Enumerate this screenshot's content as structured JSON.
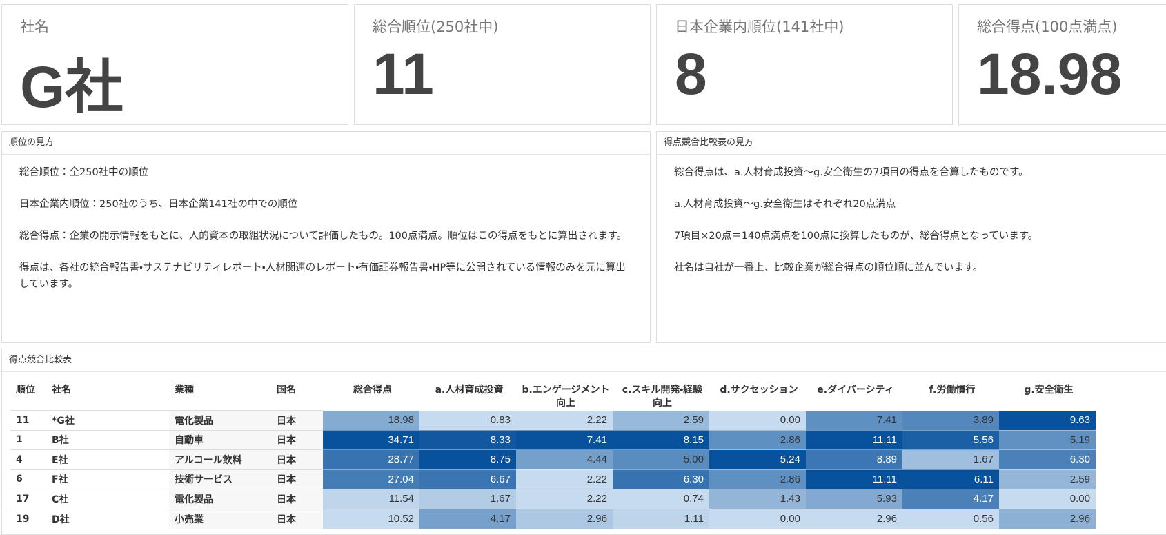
{
  "kpis": [
    {
      "label": "社名",
      "value": "G社"
    },
    {
      "label": "総合順位(250社中)",
      "value": 11
    },
    {
      "label": "日本企業内順位(141社中)",
      "value": 8
    },
    {
      "label": "総合得点(100点満点)",
      "value": 18.98
    }
  ],
  "panels": [
    {
      "title": "順位の見方",
      "paragraphs": [
        "総合順位：全250社中の順位",
        "日本企業内順位：250社のうち、日本企業141社の中での順位",
        "総合得点：企業の開示情報をもとに、人的資本の取組状況について評価したもの。100点満点。順位はこの得点をもとに算出されます。",
        "得点は、各社の統合報告書・サステナビリティレポート・人材関連のレポート・有価証券報告書・HP等に公開されている情報のみを元に算出しています。"
      ]
    },
    {
      "title": "得点競合比較表の見方",
      "paragraphs": [
        "総合得点は、a.人材育成投資〜g.安全衛生の7項目の得点を合算したものです。",
        "a.人材育成投資〜g.安全衛生はそれぞれ20点満点",
        "7項目×20点＝140点満点を100点に換算したものが、総合得点となっています。",
        "社名は自社が一番上、比較企業が総合得点の順位順に並んでいます。"
      ]
    }
  ],
  "table": {
    "title": "得点競合比較表",
    "heat_scale": [
      "#c6dbef",
      "#08519c"
    ],
    "columns": [
      "順位",
      "社名",
      "業種",
      "国名",
      "総合得点",
      "a.人材育成投資",
      "b.エンゲージメント向上",
      "c.スキル開発・経験向上",
      "d.サクセッション",
      "e.ダイバーシティ",
      "f.労働慣行",
      "g.安全衛生"
    ],
    "rows": [
      [
        "11",
        "*G社",
        "電化製品",
        "日本",
        "18.98",
        "0.83",
        "2.22",
        "2.59",
        "0.00",
        "7.41",
        "3.89",
        "9.63"
      ],
      [
        "1",
        "B社",
        "自動車",
        "日本",
        "34.71",
        "8.33",
        "7.41",
        "8.15",
        "2.86",
        "11.11",
        "5.56",
        "5.19"
      ],
      [
        "4",
        "E社",
        "アルコール飲料",
        "日本",
        "28.77",
        "8.75",
        "4.44",
        "5.00",
        "5.24",
        "8.89",
        "1.67",
        "6.30"
      ],
      [
        "6",
        "F社",
        "技術サービス",
        "日本",
        "27.04",
        "6.67",
        "2.22",
        "6.30",
        "2.86",
        "11.11",
        "6.11",
        "2.59"
      ],
      [
        "17",
        "C社",
        "電化製品",
        "日本",
        "11.54",
        "1.67",
        "2.22",
        "0.74",
        "1.43",
        "5.93",
        "4.17",
        "0.00"
      ],
      [
        "19",
        "D社",
        "小売業",
        "日本",
        "10.52",
        "4.17",
        "2.96",
        "1.11",
        "0.00",
        "2.96",
        "0.56",
        "2.96"
      ]
    ]
  }
}
